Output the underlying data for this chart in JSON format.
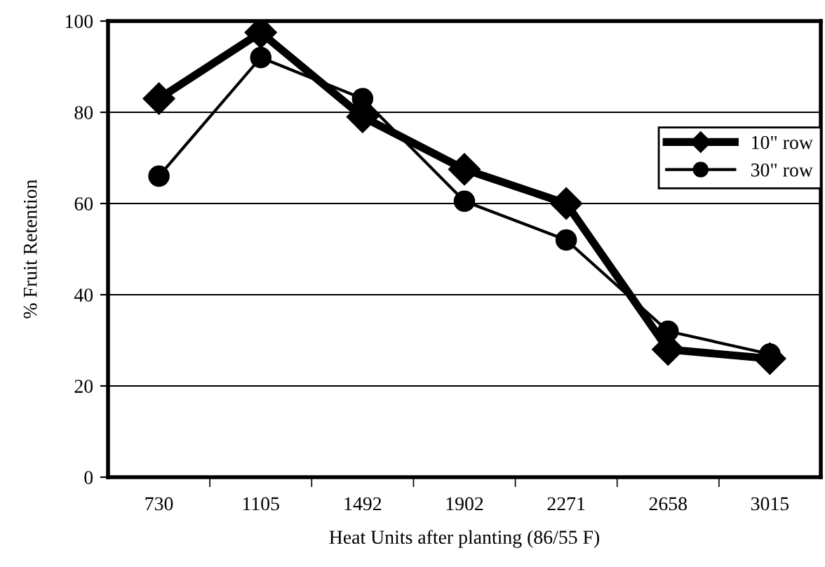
{
  "chart_data": {
    "type": "line",
    "xlabel": "Heat Units after planting (86/55 F)",
    "ylabel": "% Fruit Retention",
    "categories": [
      "730",
      "1105",
      "1492",
      "1902",
      "2271",
      "2658",
      "3015"
    ],
    "series": [
      {
        "name": "10\" row",
        "color": "#000000",
        "values": [
          83,
          97.5,
          79,
          67.5,
          60,
          28,
          26
        ],
        "marker": "diamond"
      },
      {
        "name": "30\" row",
        "color": "#000000",
        "values": [
          66,
          92,
          83,
          60.5,
          52,
          32,
          27
        ],
        "marker": "circle"
      }
    ],
    "ylim": [
      0,
      100
    ],
    "yticks": [
      0,
      20,
      40,
      60,
      80,
      100
    ],
    "grid": "y",
    "legend": "right",
    "line_style": "solid"
  }
}
